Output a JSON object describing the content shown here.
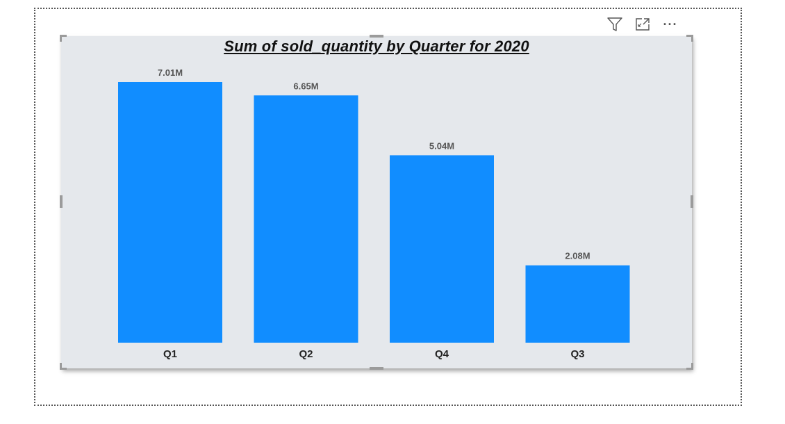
{
  "toolbar": {
    "icons": [
      "filter-icon",
      "focus-mode-icon",
      "more-options-icon"
    ],
    "more_label": "···"
  },
  "colors": {
    "bar": "#118dff",
    "visual_background": "#e5e8ec",
    "data_label": "#555555",
    "axis_label": "#222222"
  },
  "chart_data": {
    "type": "bar",
    "title": "Sum of sold_quantity by Quarter for 2020",
    "categories": [
      "Q1",
      "Q2",
      "Q4",
      "Q3"
    ],
    "values": [
      7.01,
      6.65,
      5.04,
      2.08
    ],
    "value_unit": "millions",
    "data_labels": [
      "7.01M",
      "6.65M",
      "5.04M",
      "2.08M"
    ],
    "xlabel": "",
    "ylabel": "",
    "ylim": [
      0,
      7.01
    ],
    "grid": false,
    "legend": "none"
  }
}
